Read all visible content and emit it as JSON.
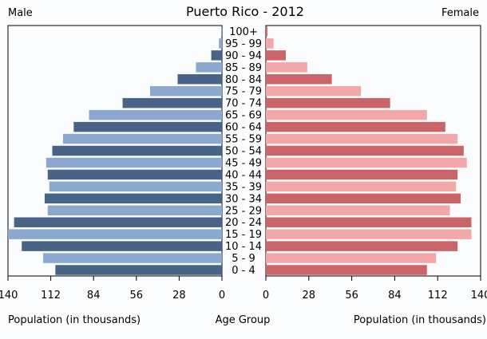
{
  "chart_data": {
    "type": "bar",
    "title": "Puerto Rico - 2012",
    "left_label": "Male",
    "right_label": "Female",
    "xlabel_left": "Population (in thousands)",
    "xlabel_center": "Age Group",
    "xlabel_right": "Population (in thousands)",
    "xlim": [
      0,
      140
    ],
    "ticks_left": [
      "140",
      "112",
      "84",
      "56",
      "28",
      "0"
    ],
    "ticks_right": [
      "0",
      "28",
      "56",
      "84",
      "112",
      "140"
    ],
    "tick_values": [
      0,
      28,
      56,
      84,
      112,
      140
    ],
    "categories": [
      "100+",
      "95 - 99",
      "90 - 94",
      "85 - 89",
      "80 - 84",
      "75 - 79",
      "70 - 74",
      "65 - 69",
      "60 - 64",
      "55 - 59",
      "50 - 54",
      "45 - 49",
      "40 - 44",
      "35 - 39",
      "30 - 34",
      "25 - 29",
      "20 - 24",
      "15 - 19",
      "10 - 14",
      "5 - 9",
      "0 - 4"
    ],
    "series": [
      {
        "name": "Male",
        "values": [
          0.2,
          2,
          7,
          17,
          29,
          47,
          65,
          87,
          97,
          104,
          111,
          115,
          114,
          113,
          116,
          114,
          136,
          141,
          131,
          117,
          109
        ]
      },
      {
        "name": "Female",
        "values": [
          1,
          5,
          13,
          27,
          43,
          62,
          81,
          105,
          117,
          125,
          129,
          131,
          125,
          124,
          127,
          120,
          134,
          134,
          125,
          111,
          105
        ]
      }
    ],
    "colors": {
      "male_dark": "#476385",
      "male_light": "#8ba8ce",
      "female_dark": "#cb6467",
      "female_light": "#f2a7a8",
      "background": "#fbfcfd",
      "frame": "#000000"
    },
    "grid": false
  }
}
